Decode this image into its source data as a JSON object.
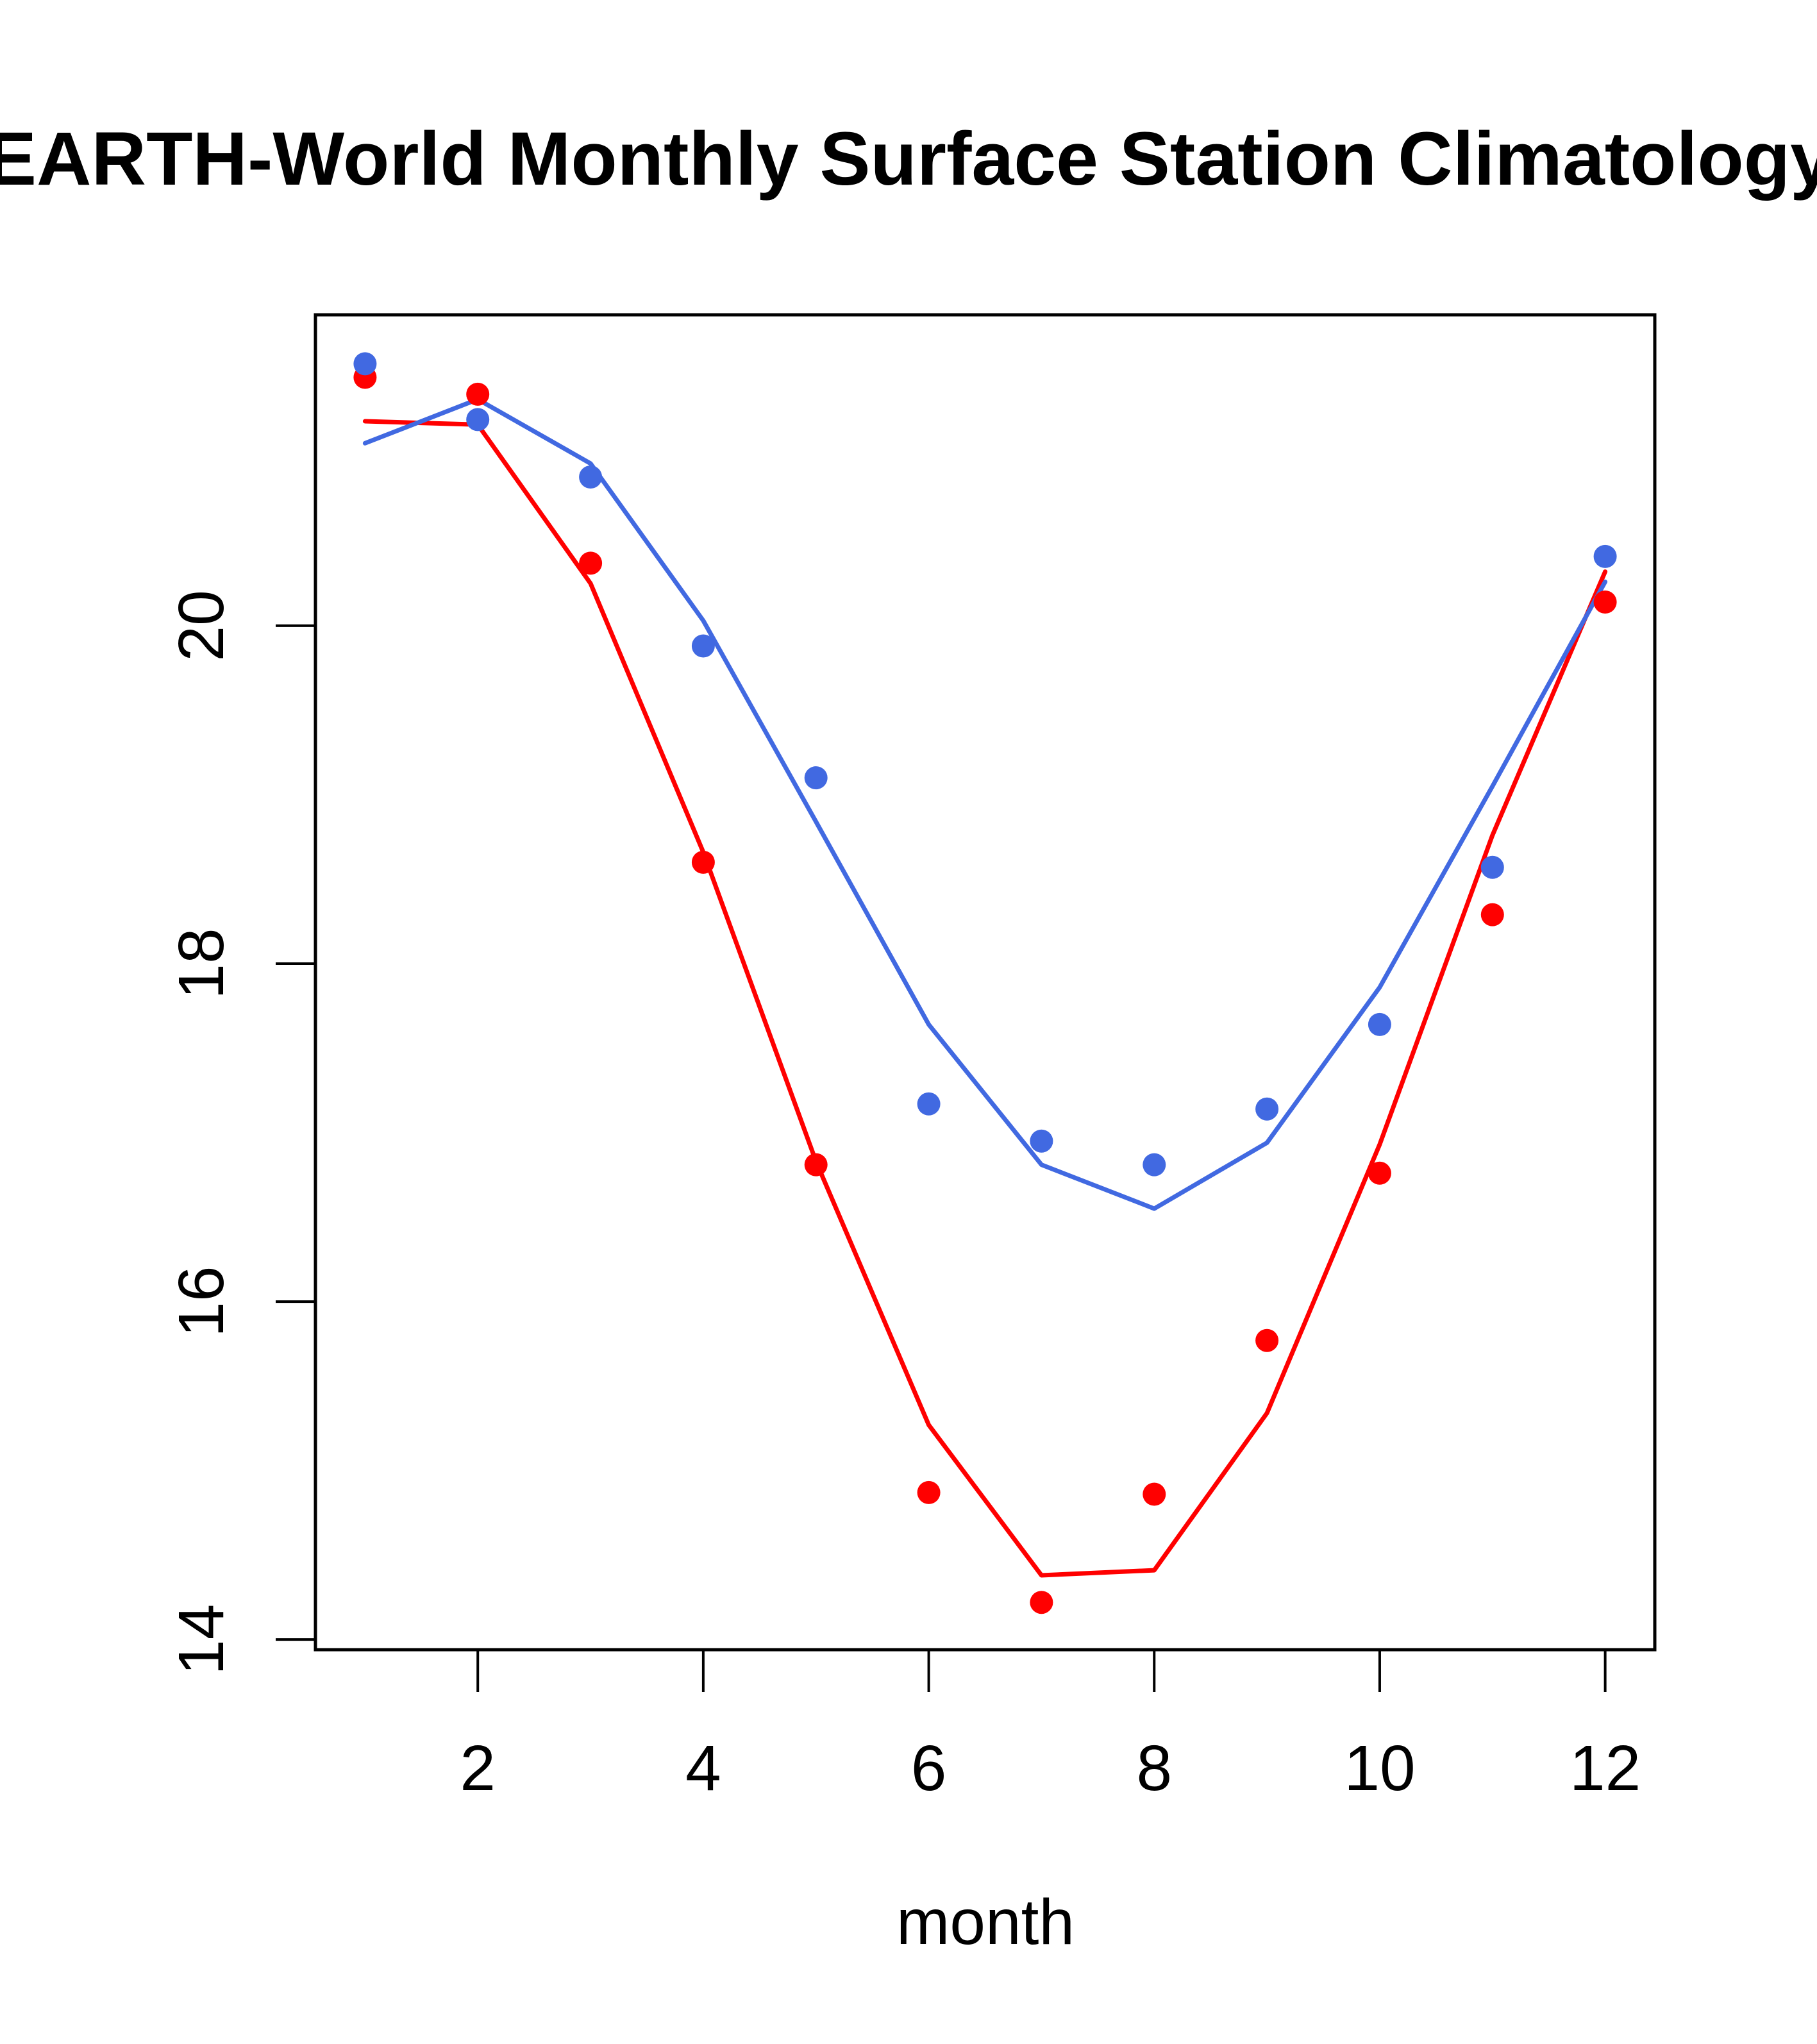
{
  "chart_data": {
    "type": "scatter",
    "title": "EARTH-World Monthly Surface Station Climatology",
    "xlabel": "month",
    "ylabel": "",
    "xlim": [
      0.56,
      12.44
    ],
    "ylim": [
      13.94,
      21.84
    ],
    "x_ticks": [
      2,
      4,
      6,
      8,
      10,
      12
    ],
    "x_tick_labels": [
      "2",
      "4",
      "6",
      "8",
      "10",
      "12"
    ],
    "y_ticks": [
      14,
      16,
      18,
      20
    ],
    "y_tick_labels": [
      "14",
      "16",
      "18",
      "20"
    ],
    "grid": false,
    "legend": null,
    "x": [
      1,
      2,
      3,
      4,
      5,
      6,
      7,
      8,
      9,
      10,
      11,
      12
    ],
    "series": [
      {
        "name": "red-points",
        "kind": "points",
        "color": "#FF0000",
        "values": [
          21.47,
          21.37,
          20.37,
          18.6,
          16.81,
          14.87,
          14.22,
          14.86,
          15.77,
          16.76,
          18.29,
          20.14
        ]
      },
      {
        "name": "red-line",
        "kind": "line",
        "color": "#FF0000",
        "values": [
          21.21,
          21.19,
          20.25,
          18.66,
          16.83,
          15.27,
          14.38,
          14.41,
          15.34,
          16.93,
          18.76,
          20.32
        ]
      },
      {
        "name": "blue-points",
        "kind": "points",
        "color": "#4169E1",
        "values": [
          21.55,
          21.22,
          20.88,
          19.88,
          19.1,
          17.17,
          16.95,
          16.81,
          17.14,
          17.64,
          18.57,
          20.41
        ]
      },
      {
        "name": "blue-line",
        "kind": "line",
        "color": "#4169E1",
        "values": [
          21.08,
          21.34,
          20.96,
          20.03,
          18.84,
          17.64,
          16.81,
          16.55,
          16.94,
          17.86,
          19.05,
          20.26
        ]
      }
    ]
  }
}
